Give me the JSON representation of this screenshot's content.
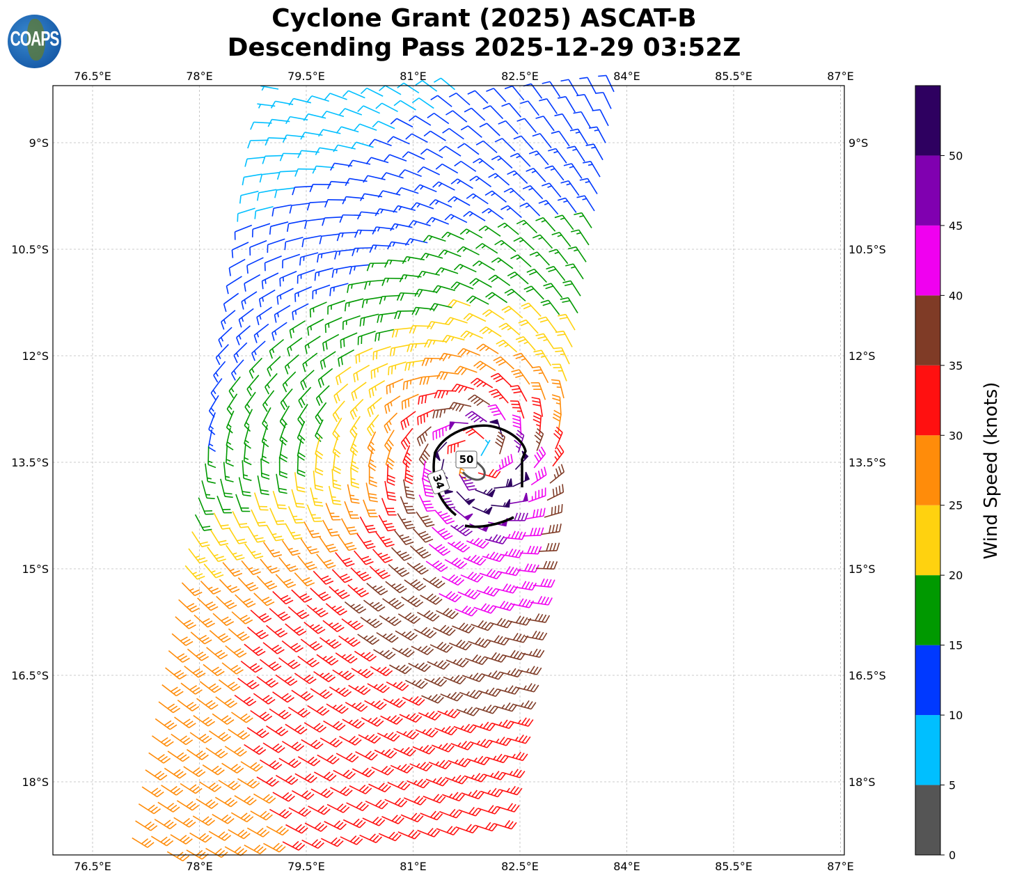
{
  "header": {
    "title_line1": "Cyclone Grant (2025) ASCAT-B",
    "title_line2": "Descending Pass 2025-12-29 03:52Z",
    "logo_text": "COAPS"
  },
  "chart_data": {
    "type": "wind-barb-map",
    "title": "Cyclone Grant (2025) ASCAT-B Descending Pass 2025-12-29 03:52Z",
    "x_ticks": [
      76.5,
      78,
      79.5,
      81,
      82.5,
      84,
      85.5,
      87
    ],
    "x_tick_labels": [
      "76.5°E",
      "78°E",
      "79.5°E",
      "81°E",
      "82.5°E",
      "84°E",
      "85.5°E",
      "87°E"
    ],
    "y_ticks": [
      9,
      10.5,
      12,
      13.5,
      15,
      16.5,
      18
    ],
    "y_tick_labels": [
      "9°S",
      "10.5°S",
      "12°S",
      "13.5°S",
      "15°S",
      "16.5°S",
      "18°S"
    ],
    "lon_range": [
      75.94,
      87.0
    ],
    "lat_range_south": [
      8.2,
      19.0
    ],
    "grid": true,
    "storm_center": {
      "lon": 81.9,
      "lat": -13.45
    },
    "max_wind_kt": 52,
    "contours": [
      {
        "level": 34,
        "label": "34"
      },
      {
        "level": 50,
        "label": "50"
      }
    ],
    "colorbar": {
      "label": "Wind Speed (knots)",
      "bounds": [
        0,
        5,
        10,
        15,
        20,
        25,
        30,
        35,
        40,
        45,
        50,
        55
      ],
      "tick_labels": [
        "0",
        "5",
        "10",
        "15",
        "20",
        "25",
        "30",
        "35",
        "40",
        "45",
        "50"
      ],
      "colors": [
        "#555555",
        "#00bfff",
        "#0039ff",
        "#009900",
        "#ffd20f",
        "#ff8c0a",
        "#ff1010",
        "#7f3b26",
        "#f000f0",
        "#8000b0",
        "#2e0060"
      ]
    }
  }
}
